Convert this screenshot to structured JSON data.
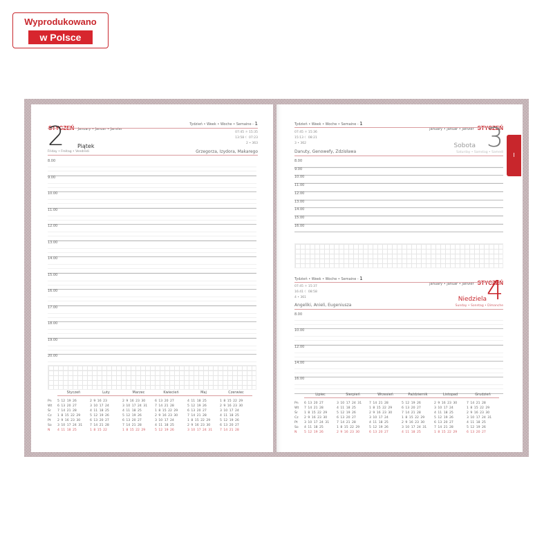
{
  "badge": {
    "line1": "Wyprodukowano",
    "line2": "w Polsce"
  },
  "tab": {
    "label": "I"
  },
  "left_page": {
    "month": "STYCZEŃ",
    "month_translations": "January • Januar • Janvier",
    "week": "Tydzień • Week • Woche • Semaine -",
    "week_no": "1",
    "day_number": "2",
    "day_name": "Piątek",
    "day_translations": "Friday • Freitag • Vendredi",
    "sun": "07:45 ☼ 15:35",
    "moon": "13:58 ☾ 07:23",
    "day_of_year": "2 • 363",
    "name_days": "Grzegorza, Izydora, Makarego",
    "times": [
      "8.00",
      "9.00",
      "10.00",
      "11.00",
      "12.00",
      "13.00",
      "14.00",
      "15.00",
      "16.00",
      "17.00",
      "18.00",
      "19.00",
      "20.00"
    ]
  },
  "right_page": {
    "day3": {
      "week": "Tydzień • Week • Woche • Semaine -",
      "week_no": "1",
      "month_translations": "January • Januar • Janvier",
      "month": "STYCZEŃ",
      "sun": "07:45 ☼ 15:36",
      "moon": "15:13 ☾ 08:21",
      "day_of_year": "3 • 362",
      "name_days": "Danuty, Genowefy, Zdzisława",
      "day_number": "3",
      "day_name": "Sobota",
      "day_translations": "Saturday • Samstag • Samedi",
      "times": [
        "8.00",
        "9.00",
        "10.00",
        "11.00",
        "12.00",
        "13.00",
        "14.00",
        "15.00",
        "16.00"
      ]
    },
    "day4": {
      "week": "Tydzień • Week • Woche • Semaine -",
      "week_no": "1",
      "month_translations": "January • Januar • Janvier",
      "month": "STYCZEŃ",
      "sun": "07:45 ☼ 15:37",
      "moon": "16:41 ☾ 08:58",
      "day_of_year": "4 • 361",
      "name_days": "Angeliki, Anieli, Eugeniusza",
      "day_number": "4",
      "day_name": "Niedziela",
      "day_translations": "Sunday • Sonntag • Dimanche",
      "times": [
        "8.00",
        "10.00",
        "12.00",
        "14.00",
        "16.00"
      ]
    }
  },
  "weekdays": [
    "Pn",
    "Wt",
    "Śr",
    "Cz",
    "Pt",
    "So",
    "N"
  ],
  "calendar_left": [
    {
      "name": "Styczeń",
      "rows": [
        "5 12 19 26",
        "6 13 20 27",
        "7 14 21 28",
        "1 8 15 22 29",
        "2 9 16 23 30",
        "3 10 17 24 31",
        "4 11 18 25"
      ]
    },
    {
      "name": "Luty",
      "rows": [
        "2 9 16 23",
        "3 10 17 24",
        "4 11 18 25",
        "5 12 19 26",
        "6 13 20 27",
        "7 14 21 28",
        "1 8 15 22"
      ]
    },
    {
      "name": "Marzec",
      "rows": [
        "2 9 16 23 30",
        "3 10 17 24 31",
        "4 11 18 25",
        "5 12 19 26",
        "6 13 20 27",
        "7 14 21 28",
        "1 8 15 22 29"
      ]
    },
    {
      "name": "Kwiecień",
      "rows": [
        "6 13 20 27",
        "7 14 21 28",
        "1 8 15 22 29",
        "2 9 16 23 30",
        "3 10 17 24",
        "4 11 18 25",
        "5 12 19 26"
      ]
    },
    {
      "name": "Maj",
      "rows": [
        "4 11 18 25",
        "5 12 19 26",
        "6 13 20 27",
        "7 14 21 28",
        "1 8 15 22 29",
        "2 9 16 23 30",
        "3 10 17 24 31"
      ]
    },
    {
      "name": "Czerwiec",
      "rows": [
        "1 8 15 22 29",
        "2 9 16 23 30",
        "3 10 17 24",
        "4 11 18 25",
        "5 12 19 26",
        "6 13 20 27",
        "7 14 21 28"
      ]
    }
  ],
  "calendar_right": [
    {
      "name": "Lipiec",
      "rows": [
        "6 13 20 27",
        "7 14 21 28",
        "1 8 15 22 29",
        "2 9 16 23 30",
        "3 10 17 24 31",
        "4 11 18 25",
        "5 12 19 26"
      ]
    },
    {
      "name": "Sierpień",
      "rows": [
        "3 10 17 24 31",
        "4 11 18 25",
        "5 12 19 26",
        "6 13 20 27",
        "7 14 21 28",
        "1 8 15 22 29",
        "2 9 16 23 30"
      ]
    },
    {
      "name": "Wrzesień",
      "rows": [
        "7 14 21 28",
        "1 8 15 22 29",
        "2 9 16 23 30",
        "3 10 17 24",
        "4 11 18 25",
        "5 12 19 26",
        "6 13 20 27"
      ]
    },
    {
      "name": "Październik",
      "rows": [
        "5 12 19 26",
        "6 13 20 27",
        "7 14 21 28",
        "1 8 15 22 29",
        "2 9 16 23 30",
        "3 10 17 24 31",
        "4 11 18 25"
      ]
    },
    {
      "name": "Listopad",
      "rows": [
        "2 9 16 23 30",
        "3 10 17 24",
        "4 11 18 25",
        "5 12 19 26",
        "6 13 20 27",
        "7 14 21 28",
        "1 8 15 22 29"
      ]
    },
    {
      "name": "Grudzień",
      "rows": [
        "7 14 21 28",
        "1 8 15 22 29",
        "2 9 16 23 30",
        "3 10 17 24 31",
        "4 11 18 25",
        "5 12 19 26",
        "6 13 20 27"
      ]
    }
  ],
  "colors": {
    "accent": "#c8262c",
    "cover": "#c7b5b8"
  }
}
